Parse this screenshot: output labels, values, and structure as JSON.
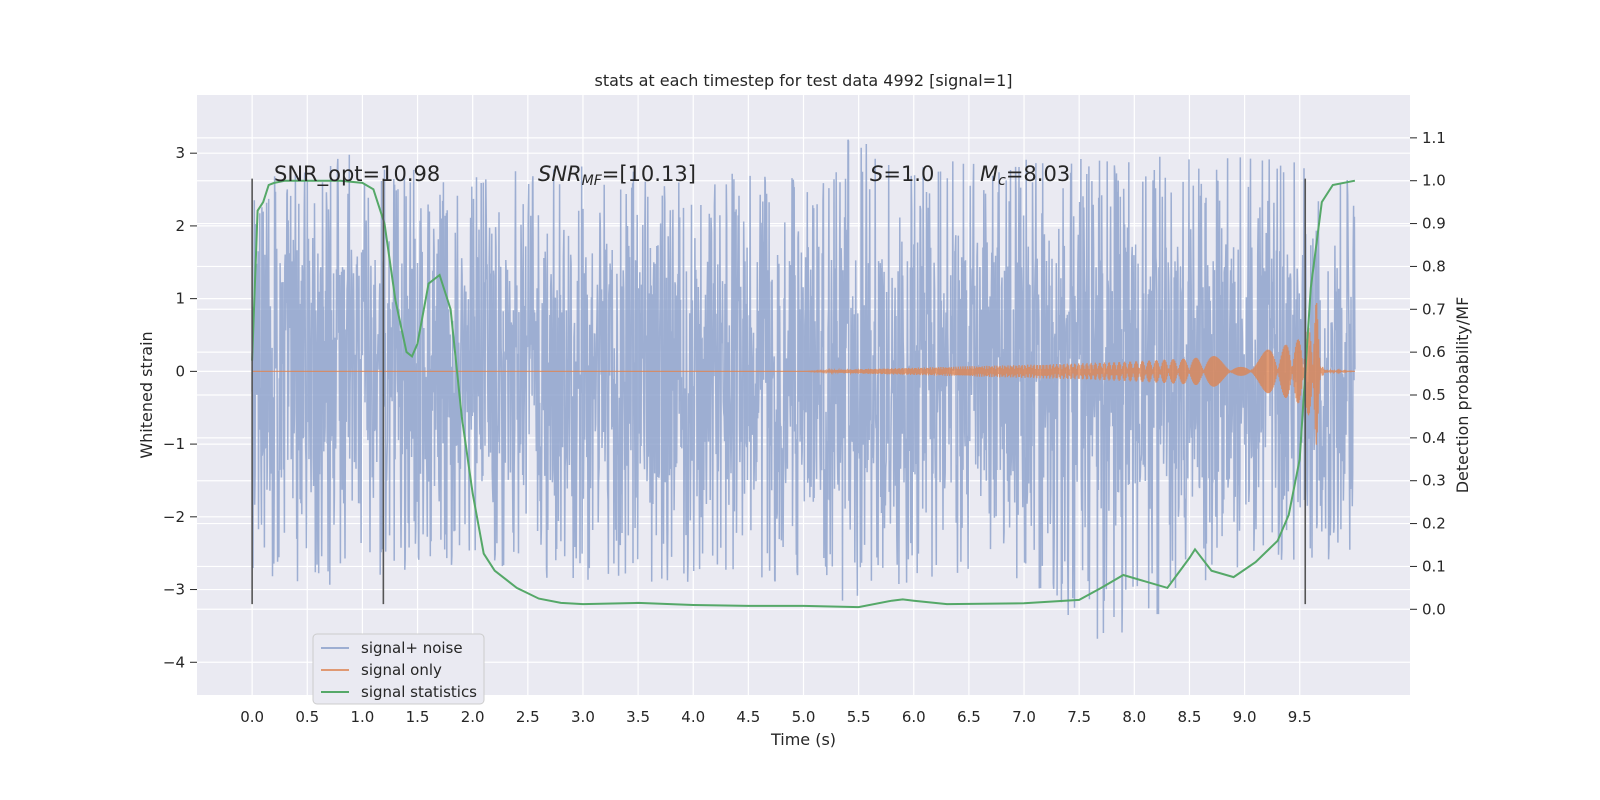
{
  "chart_data": {
    "type": "line",
    "title": "stats at each timestep for test data 4992 [signal=1]",
    "xlabel": "Time (s)",
    "ylabel": "Whitened strain",
    "y2label": "Detection probability/MF",
    "xlim": [
      -0.5,
      10.5
    ],
    "ylim": [
      -4.45,
      3.8
    ],
    "y2lim": [
      -0.2,
      1.2
    ],
    "x_ticks": [
      "0.0",
      "0.5",
      "1.0",
      "1.5",
      "2.0",
      "2.5",
      "3.0",
      "3.5",
      "4.0",
      "4.5",
      "5.0",
      "5.5",
      "6.0",
      "6.5",
      "7.0",
      "7.5",
      "8.0",
      "8.5",
      "9.0",
      "9.5"
    ],
    "y_ticks": [
      "3",
      "2",
      "1",
      "0",
      "−1",
      "−2",
      "−3",
      "−4"
    ],
    "y2_ticks": [
      "1.1",
      "1.0",
      "0.9",
      "0.8",
      "0.7",
      "0.6",
      "0.5",
      "0.4",
      "0.3",
      "0.2",
      "0.1",
      "0.0"
    ],
    "grid": true,
    "legend_position": "lower-left",
    "annotations": {
      "snr_opt": "SNR_opt=10.98",
      "snr_mf_sym": "SNR",
      "snr_mf_sub": "MF",
      "snr_mf_val": "=[10.13]",
      "s_sym": "S",
      "s_val": "=1.0",
      "mc_sym": "M",
      "mc_sub": "c",
      "mc_val": "=8.03"
    },
    "markers_x": [
      0.0,
      1.19,
      9.55
    ],
    "marker_range": [
      -3.2,
      2.65
    ],
    "series": [
      {
        "name": "signal+ noise",
        "color": "#8fa3cc",
        "description_range": [
          -4.0,
          3.45
        ],
        "envelope": {
          "x": [
            0.0,
            0.5,
            1.0,
            1.5,
            2.0,
            3.0,
            4.0,
            5.0,
            5.4,
            6.0,
            7.0,
            7.8,
            8.5,
            9.0,
            9.5,
            10.0
          ],
          "upper": [
            2.6,
            2.8,
            3.1,
            2.9,
            2.7,
            2.9,
            2.8,
            2.7,
            3.45,
            2.9,
            3.0,
            2.9,
            3.0,
            3.0,
            2.9,
            2.7
          ],
          "lower": [
            -3.0,
            -2.9,
            -3.1,
            -2.7,
            -2.8,
            -2.9,
            -2.9,
            -2.9,
            -3.25,
            -2.9,
            -2.9,
            -4.0,
            -3.0,
            -2.9,
            -2.7,
            -2.5
          ],
          "core": 1.45
        }
      },
      {
        "name": "signal only",
        "color": "#dd8452",
        "envelope": {
          "x": [
            0.0,
            5.0,
            5.5,
            6.0,
            6.5,
            7.0,
            7.5,
            8.0,
            8.5,
            9.0,
            9.3,
            9.5,
            9.6,
            9.65,
            9.68,
            9.72,
            10.0
          ],
          "amp": [
            0.0,
            0.0,
            0.03,
            0.05,
            0.07,
            0.09,
            0.11,
            0.14,
            0.18,
            0.25,
            0.32,
            0.45,
            0.65,
            1.05,
            0.3,
            0.02,
            0.0
          ]
        }
      },
      {
        "name": "signal statistics",
        "color": "#55a868",
        "x": [
          0.0,
          0.05,
          0.1,
          0.15,
          0.2,
          0.3,
          0.5,
          0.8,
          1.0,
          1.1,
          1.2,
          1.3,
          1.4,
          1.45,
          1.5,
          1.6,
          1.7,
          1.8,
          1.9,
          2.0,
          2.1,
          2.2,
          2.4,
          2.6,
          2.8,
          3.0,
          3.5,
          4.0,
          4.5,
          5.0,
          5.5,
          5.8,
          5.9,
          6.0,
          6.3,
          7.0,
          7.5,
          7.7,
          7.9,
          8.1,
          8.3,
          8.5,
          8.55,
          8.7,
          8.9,
          9.1,
          9.3,
          9.4,
          9.5,
          9.55,
          9.6,
          9.7,
          9.8,
          10.0
        ],
        "values": [
          0.58,
          0.93,
          0.95,
          0.99,
          0.995,
          1.0,
          1.0,
          1.0,
          0.995,
          0.98,
          0.9,
          0.72,
          0.6,
          0.59,
          0.62,
          0.76,
          0.78,
          0.7,
          0.45,
          0.27,
          0.13,
          0.09,
          0.05,
          0.025,
          0.015,
          0.012,
          0.015,
          0.01,
          0.008,
          0.008,
          0.005,
          0.02,
          0.023,
          0.02,
          0.012,
          0.014,
          0.022,
          0.05,
          0.08,
          0.065,
          0.05,
          0.12,
          0.14,
          0.09,
          0.075,
          0.11,
          0.16,
          0.22,
          0.35,
          0.55,
          0.75,
          0.95,
          0.99,
          1.0
        ]
      }
    ]
  }
}
